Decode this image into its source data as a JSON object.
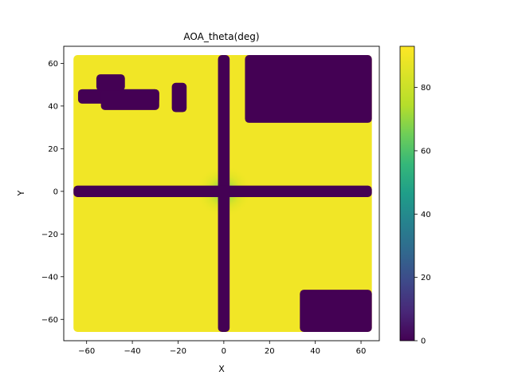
{
  "chart_data": {
    "type": "heatmap",
    "title": "AOA_theta(deg)",
    "xlabel": "X",
    "ylabel": "Y",
    "xlim": [
      -70,
      68
    ],
    "ylim": [
      -70,
      68
    ],
    "x_ticks": [
      -60,
      -40,
      -20,
      0,
      20,
      40,
      60
    ],
    "y_ticks": [
      -60,
      -40,
      -20,
      0,
      20,
      40,
      60
    ],
    "grid": false,
    "colormap": "viridis",
    "colorbar": {
      "range": [
        0,
        93
      ],
      "ticks": [
        0,
        20,
        40,
        60,
        80
      ]
    },
    "data_extent": {
      "x": [
        -64,
        63
      ],
      "y": [
        -64,
        62
      ]
    },
    "background_value": 90,
    "near_zero_regions": [
      {
        "region": "vertical-line",
        "x": [
          -0.8,
          0.8
        ],
        "y": [
          -64,
          62
        ],
        "value": 0
      },
      {
        "region": "horizontal-line",
        "x": [
          -64,
          63
        ],
        "y": [
          -0.8,
          0.8
        ],
        "value": 0
      },
      {
        "region": "top-right-block",
        "x": [
          11,
          63
        ],
        "y": [
          34,
          62
        ],
        "value": 0
      },
      {
        "region": "bottom-right-block",
        "x": [
          35,
          63
        ],
        "y": [
          -64,
          -48
        ],
        "value": 0
      },
      {
        "region": "top-left-strip",
        "x": [
          -62,
          -30
        ],
        "y": [
          43,
          46
        ],
        "value": 0
      },
      {
        "region": "top-left-block",
        "x": [
          -52,
          -30
        ],
        "y": [
          40,
          46
        ],
        "value": 0
      },
      {
        "region": "top-left-small-block",
        "x": [
          -54,
          -45
        ],
        "y": [
          49,
          53
        ],
        "value": 0
      },
      {
        "region": "top-left-column",
        "x": [
          -21,
          -18
        ],
        "y": [
          39,
          49
        ],
        "value": 0
      }
    ],
    "center_gradient": {
      "center": [
        0,
        0
      ],
      "min_value": 60,
      "radius": 12
    }
  }
}
